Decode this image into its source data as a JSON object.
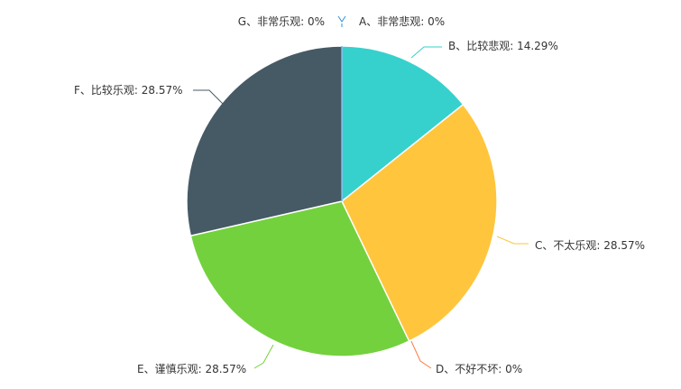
{
  "chart_data": {
    "type": "pie",
    "slices": [
      {
        "label": "A、非常悲观",
        "value": 0,
        "percent_text": "0%",
        "color": "#4aa8d8"
      },
      {
        "label": "B、比较悲观",
        "value": 14.29,
        "percent_text": "14.29%",
        "color": "#36d1cc"
      },
      {
        "label": "C、不太乐观",
        "value": 28.57,
        "percent_text": "28.57%",
        "color": "#ffc53d"
      },
      {
        "label": "D、不好不坏",
        "value": 0,
        "percent_text": "0%",
        "color": "#ff7a45"
      },
      {
        "label": "E、谨慎乐观",
        "value": 28.57,
        "percent_text": "28.57%",
        "color": "#73d13d"
      },
      {
        "label": "F、比较乐观",
        "value": 28.57,
        "percent_text": "28.57%",
        "color": "#465a65"
      },
      {
        "label": "G、非常乐观",
        "value": 0,
        "percent_text": "0%",
        "color": "#2f8fe0"
      }
    ]
  }
}
